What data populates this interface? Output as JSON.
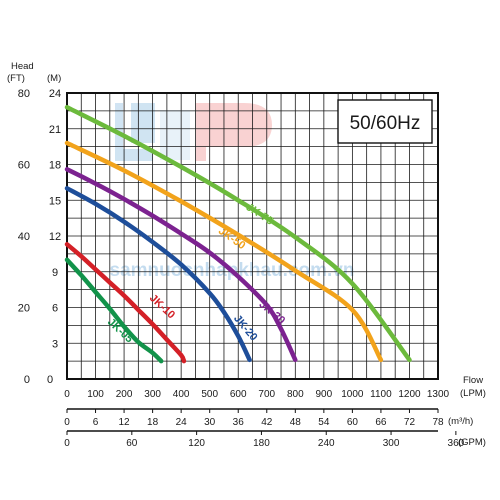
{
  "chart_data": {
    "type": "line",
    "frequency_label": "50/60Hz",
    "watermark_text": "samnuocnhapkhau.com.vn",
    "y_axis": {
      "title": "Head",
      "ft_unit": "(FT)",
      "m_unit": "(M)",
      "ft_ticks": [
        "0",
        "20",
        "40",
        "60",
        "80"
      ],
      "m_ticks": [
        "3",
        "6",
        "9",
        "12",
        "15",
        "18",
        "21",
        "24"
      ],
      "ylim_m": [
        0,
        24
      ]
    },
    "x_axis": {
      "title": "Flow",
      "lpm_unit": "(LPM)",
      "m3h_unit": "(m³/h)",
      "gpm_unit": "(GPM)",
      "lpm_ticks": [
        "0",
        "100",
        "200",
        "300",
        "400",
        "500",
        "600",
        "700",
        "800",
        "900",
        "1000",
        "1100",
        "1200",
        "1300"
      ],
      "m3h_ticks": [
        "0",
        "6",
        "12",
        "18",
        "24",
        "30",
        "36",
        "42",
        "48",
        "54",
        "60",
        "66",
        "72",
        "78"
      ],
      "gpm_ticks": [
        "0",
        "60",
        "120",
        "180",
        "240",
        "300",
        "360"
      ],
      "xlim_lpm": [
        0,
        1300
      ]
    },
    "series": [
      {
        "name": "JK-05",
        "color": "#12934a",
        "label_angle": 43,
        "x": [
          0,
          50,
          100,
          150,
          200,
          250,
          300,
          330
        ],
        "y": [
          10.0,
          8.7,
          7.3,
          5.9,
          4.4,
          3.1,
          2.2,
          1.5
        ]
      },
      {
        "name": "JK-10",
        "color": "#d42027",
        "label_angle": 43,
        "x": [
          0,
          50,
          100,
          150,
          200,
          250,
          300,
          350,
          400,
          410
        ],
        "y": [
          11.3,
          10.3,
          9.2,
          8.1,
          7.0,
          5.8,
          4.6,
          3.3,
          2.0,
          1.5
        ]
      },
      {
        "name": "JK-20",
        "color": "#1e4e9a",
        "label_angle": 50,
        "x": [
          0,
          100,
          200,
          300,
          400,
          500,
          550,
          600,
          640
        ],
        "y": [
          16.0,
          14.7,
          13.2,
          11.5,
          9.6,
          7.2,
          5.6,
          3.6,
          1.6
        ]
      },
      {
        "name": "JK-30",
        "color": "#7c2290",
        "label_angle": 40,
        "x": [
          0,
          100,
          200,
          300,
          400,
          500,
          600,
          700,
          750,
          800
        ],
        "y": [
          17.6,
          16.4,
          15.1,
          13.7,
          12.2,
          10.6,
          8.6,
          6.2,
          4.2,
          1.6
        ]
      },
      {
        "name": "JK-50",
        "color": "#f2a31b",
        "label_angle": 35,
        "x": [
          0,
          200,
          400,
          600,
          800,
          1000,
          1100
        ],
        "y": [
          19.8,
          17.5,
          14.9,
          12.1,
          9.1,
          5.8,
          1.6
        ]
      },
      {
        "name": "JK-75",
        "color": "#6cba3c",
        "label_angle": 33,
        "x": [
          0,
          200,
          400,
          600,
          800,
          1000,
          1200
        ],
        "y": [
          22.8,
          20.4,
          17.8,
          15.0,
          11.9,
          8.0,
          1.6
        ]
      }
    ]
  }
}
